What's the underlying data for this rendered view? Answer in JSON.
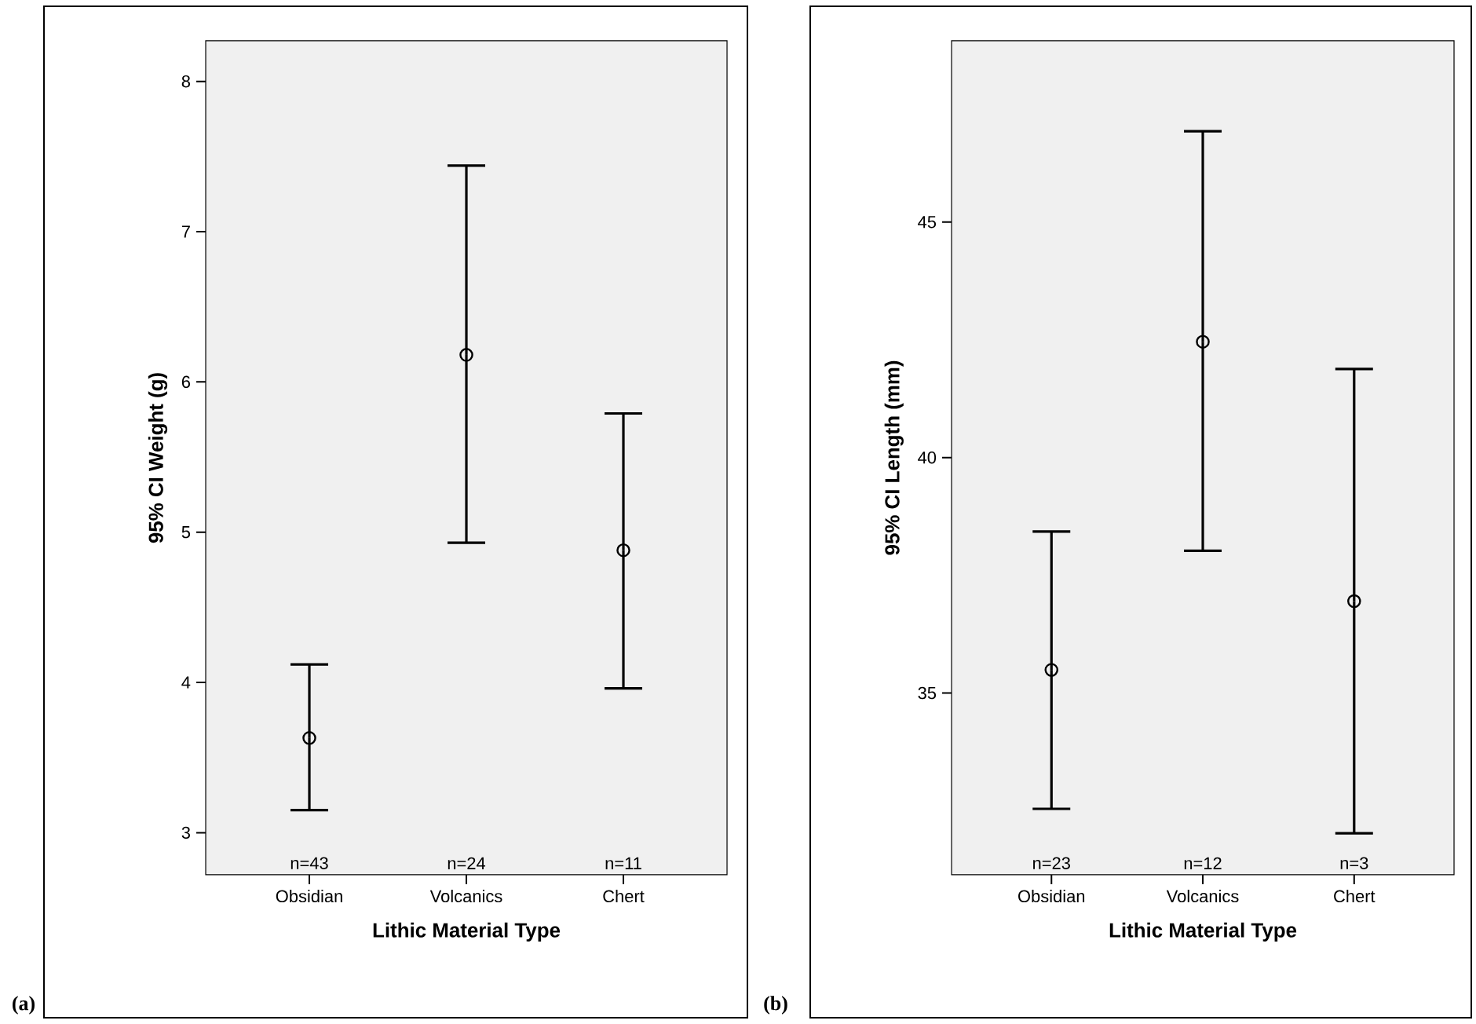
{
  "chart_data": [
    {
      "type": "scatter",
      "categories": [
        "Obsidian",
        "Volcanics",
        "Chert"
      ],
      "xlabel": "Lithic Material Type",
      "ylabel": "95% CI Weight (g)",
      "series": [
        {
          "color": "#000000",
          "values": [
            3.63,
            6.18,
            4.88
          ],
          "errors": [
            [
              3.15,
              4.12
            ],
            [
              4.93,
              7.44
            ],
            [
              3.96,
              5.79
            ]
          ]
        }
      ],
      "ylim": [
        2.72,
        8.27
      ],
      "yticks": [
        3,
        4,
        5,
        6,
        7,
        8
      ],
      "marker": "circle",
      "grid": false,
      "annotations": [
        "(a)",
        "n=43",
        "n=24",
        "n=11"
      ]
    },
    {
      "type": "scatter",
      "categories": [
        "Obsidian",
        "Volcanics",
        "Chert"
      ],
      "xlabel": "Lithic Material Type",
      "ylabel": "95% CI Length (mm)",
      "series": [
        {
          "color": "#000000",
          "values": [
            35.49,
            42.46,
            36.95
          ],
          "errors": [
            [
              32.54,
              38.43
            ],
            [
              38.02,
              46.93
            ],
            [
              32.02,
              41.88
            ]
          ]
        }
      ],
      "ylim": [
        31.14,
        48.85
      ],
      "yticks": [
        35,
        40,
        45
      ],
      "marker": "circle",
      "grid": false,
      "annotations": [
        "(b)",
        "n=23",
        "n=12",
        "n=3"
      ]
    }
  ]
}
